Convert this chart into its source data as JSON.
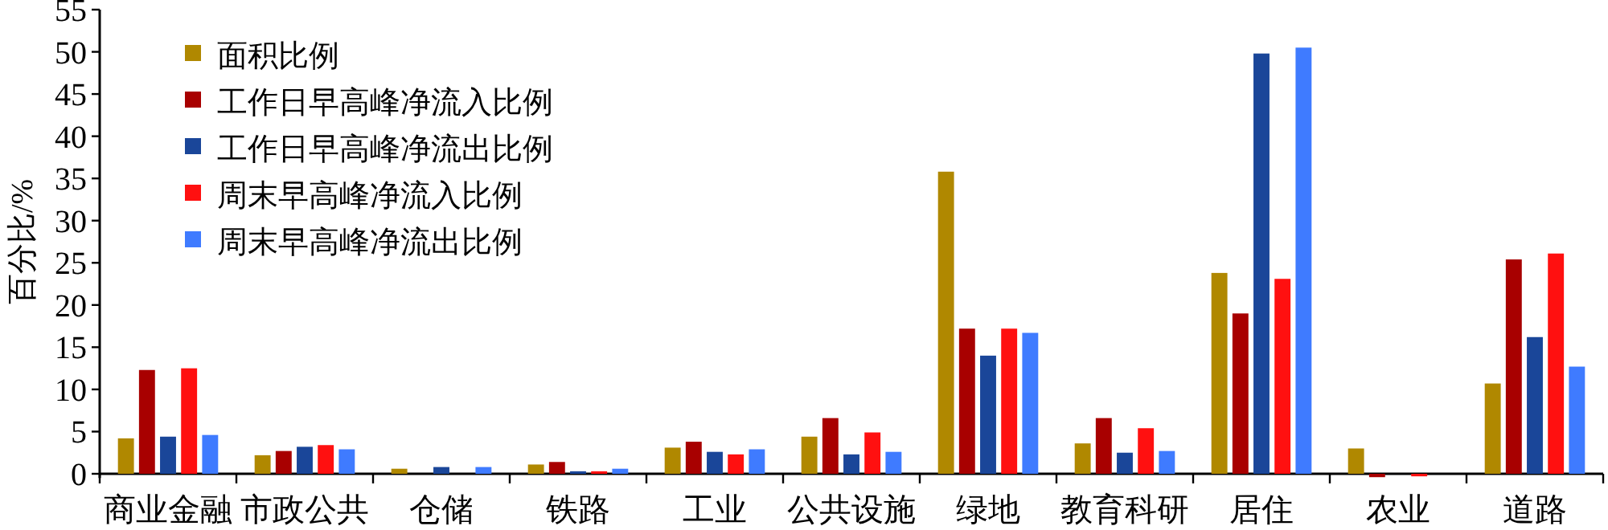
{
  "chart_data": {
    "type": "bar",
    "ylabel": "百分比/%",
    "categories": [
      "商业金融",
      "市政公共",
      "仓储",
      "铁路",
      "工业",
      "公共设施",
      "绿地",
      "教育科研",
      "居住",
      "农业",
      "道路"
    ],
    "series": [
      {
        "name": "面积比例",
        "color": "#b08800",
        "values": [
          4.2,
          2.2,
          0.6,
          1.1,
          3.1,
          4.4,
          35.8,
          3.6,
          23.8,
          3.0,
          10.7
        ]
      },
      {
        "name": "工作日早高峰净流入比例",
        "color": "#a80000",
        "values": [
          12.3,
          2.7,
          0,
          1.4,
          3.8,
          6.6,
          17.2,
          6.6,
          19.0,
          -0.4,
          25.4
        ]
      },
      {
        "name": "工作日早高峰净流出比例",
        "color": "#1a4699",
        "values": [
          4.4,
          3.2,
          0.8,
          0.3,
          2.6,
          2.3,
          14.0,
          2.5,
          49.8,
          0,
          16.2
        ]
      },
      {
        "name": "周末早高峰净流入比例",
        "color": "#ff1010",
        "values": [
          12.5,
          3.4,
          0,
          0.3,
          2.3,
          4.9,
          17.2,
          5.4,
          23.1,
          -0.3,
          26.1
        ]
      },
      {
        "name": "周末早高峰净流出比例",
        "color": "#3f7bff",
        "values": [
          4.6,
          2.9,
          0.8,
          0.6,
          2.9,
          2.6,
          16.7,
          2.7,
          50.5,
          0,
          12.7
        ]
      }
    ],
    "ylim": [
      -0.5,
      55
    ],
    "yticks": [
      0,
      5,
      10,
      15,
      20,
      25,
      30,
      35,
      40,
      45,
      50,
      55
    ],
    "grid": false,
    "legend": "top left"
  }
}
